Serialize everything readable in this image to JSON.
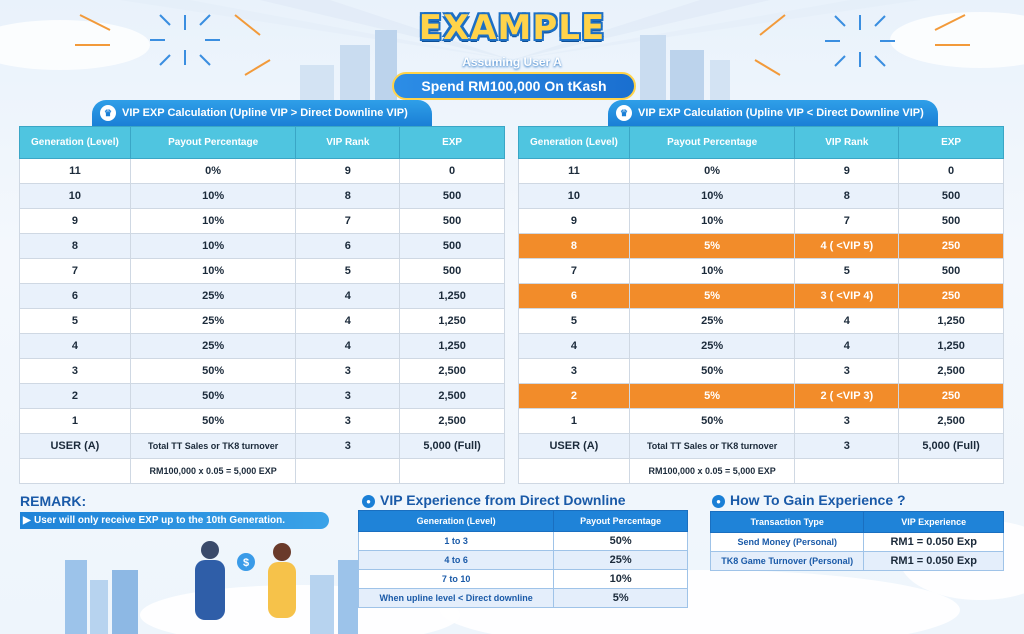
{
  "header": {
    "title": "EXAMPLE",
    "subtitle_line1": "Assuming User A",
    "subtitle_line2": "Spend RM100,000 On tKash"
  },
  "left_table": {
    "tab_label": "VIP EXP Calculation (Upline VIP > Direct Downline VIP)",
    "columns": [
      "Generation (Level)",
      "Payout Percentage",
      "VIP Rank",
      "EXP"
    ],
    "rows": [
      {
        "gen": "11",
        "payout": "0%",
        "rank": "9",
        "exp": "0"
      },
      {
        "gen": "10",
        "payout": "10%",
        "rank": "8",
        "exp": "500"
      },
      {
        "gen": "9",
        "payout": "10%",
        "rank": "7",
        "exp": "500"
      },
      {
        "gen": "8",
        "payout": "10%",
        "rank": "6",
        "exp": "500"
      },
      {
        "gen": "7",
        "payout": "10%",
        "rank": "5",
        "exp": "500"
      },
      {
        "gen": "6",
        "payout": "25%",
        "rank": "4",
        "exp": "1,250"
      },
      {
        "gen": "5",
        "payout": "25%",
        "rank": "4",
        "exp": "1,250"
      },
      {
        "gen": "4",
        "payout": "25%",
        "rank": "4",
        "exp": "1,250"
      },
      {
        "gen": "3",
        "payout": "50%",
        "rank": "3",
        "exp": "2,500"
      },
      {
        "gen": "2",
        "payout": "50%",
        "rank": "3",
        "exp": "2,500"
      },
      {
        "gen": "1",
        "payout": "50%",
        "rank": "3",
        "exp": "2,500"
      },
      {
        "gen": "USER (A)",
        "payout": "Total TT Sales or TK8 turnover",
        "rank": "3",
        "exp": "5,000 (Full)"
      },
      {
        "gen": "",
        "payout": "RM100,000 x 0.05 = 5,000 EXP",
        "rank": "",
        "exp": ""
      }
    ]
  },
  "right_table": {
    "tab_label": "VIP EXP Calculation (Upline VIP < Direct Downline VIP)",
    "columns": [
      "Generation (Level)",
      "Payout Percentage",
      "VIP Rank",
      "EXP"
    ],
    "highlight_color": "#f28c2a",
    "rows": [
      {
        "gen": "11",
        "payout": "0%",
        "rank": "9",
        "exp": "0"
      },
      {
        "gen": "10",
        "payout": "10%",
        "rank": "8",
        "exp": "500"
      },
      {
        "gen": "9",
        "payout": "10%",
        "rank": "7",
        "exp": "500"
      },
      {
        "gen": "8",
        "payout": "5%",
        "rank": "4 ( <VIP 5)",
        "exp": "250",
        "highlight": true
      },
      {
        "gen": "7",
        "payout": "10%",
        "rank": "5",
        "exp": "500"
      },
      {
        "gen": "6",
        "payout": "5%",
        "rank": "3 ( <VIP 4)",
        "exp": "250",
        "highlight": true
      },
      {
        "gen": "5",
        "payout": "25%",
        "rank": "4",
        "exp": "1,250"
      },
      {
        "gen": "4",
        "payout": "25%",
        "rank": "4",
        "exp": "1,250"
      },
      {
        "gen": "3",
        "payout": "50%",
        "rank": "3",
        "exp": "2,500"
      },
      {
        "gen": "2",
        "payout": "5%",
        "rank": "2 ( <VIP 3)",
        "exp": "250",
        "highlight": true
      },
      {
        "gen": "1",
        "payout": "50%",
        "rank": "3",
        "exp": "2,500"
      },
      {
        "gen": "USER (A)",
        "payout": "Total TT Sales or TK8 turnover",
        "rank": "3",
        "exp": "5,000 (Full)"
      },
      {
        "gen": "",
        "payout": "RM100,000 x 0.05 = 5,000 EXP",
        "rank": "",
        "exp": ""
      }
    ]
  },
  "remark": {
    "title": "REMARK:",
    "text": "User will only receive EXP up to the 10th Generation."
  },
  "direct_downline": {
    "title": "VIP Experience from Direct Downline",
    "columns": [
      "Generation (Level)",
      "Payout Percentage"
    ],
    "rows": [
      {
        "gen": "1 to 3",
        "payout": "50%"
      },
      {
        "gen": "4 to 6",
        "payout": "25%"
      },
      {
        "gen": "7 to 10",
        "payout": "10%"
      },
      {
        "gen": "When upline level < Direct downline",
        "payout": "5%"
      }
    ]
  },
  "gain_experience": {
    "title": "How To Gain Experience ?",
    "columns": [
      "Transaction Type",
      "VIP Experience"
    ],
    "rows": [
      {
        "type": "Send Money (Personal)",
        "exp": "RM1 = 0.050 Exp"
      },
      {
        "type": "TK8 Game Turnover (Personal)",
        "exp": "RM1 = 0.050 Exp"
      }
    ]
  },
  "colors": {
    "header_cyan": "#4fc5e0",
    "brand_blue": "#1f83d8",
    "title_yellow": "#ffd34a",
    "highlight_orange": "#f28c2a"
  }
}
